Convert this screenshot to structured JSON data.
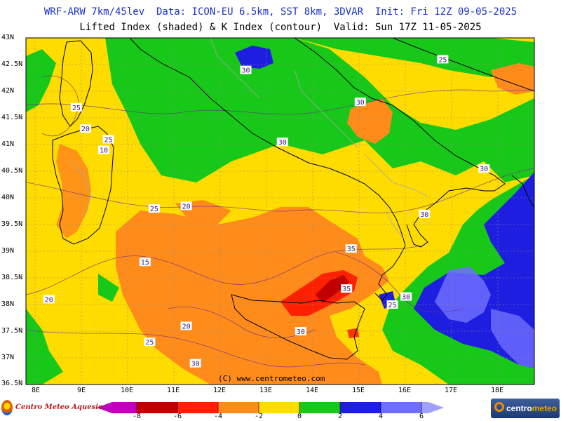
{
  "header": {
    "line1": "WRF-ARW 7km/45lev  Data: ICON-EU 6.5km, SST 8km, 3DVAR  Init: Fri 12Z 09-05-2025",
    "line2": "Lifted Index (shaded) & K Index (contour)  Valid: Sun 17Z 11-05-2025"
  },
  "map": {
    "lat_labels": [
      "43N",
      "42.5N",
      "42N",
      "41.5N",
      "41N",
      "40.5N",
      "40N",
      "39.5N",
      "39N",
      "38.5N",
      "38N",
      "37.5N",
      "37N",
      "36.5N"
    ],
    "lon_labels": [
      "8E",
      "9E",
      "10E",
      "11E",
      "12E",
      "13E",
      "14E",
      "15E",
      "16E",
      "17E",
      "18E"
    ],
    "lat_range": [
      36.5,
      43
    ],
    "lon_range": [
      7.8,
      18.9
    ],
    "credit": "(C) www.centrometeo.com",
    "k_index_labels": [
      {
        "text": "25",
        "lon": 16.9,
        "lat": 42.6
      },
      {
        "text": "30",
        "lon": 12.6,
        "lat": 42.4
      },
      {
        "text": "25",
        "lon": 8.9,
        "lat": 41.7
      },
      {
        "text": "30",
        "lon": 15.1,
        "lat": 41.8
      },
      {
        "text": "20",
        "lon": 9.1,
        "lat": 41.3
      },
      {
        "text": "25",
        "lon": 9.6,
        "lat": 41.1
      },
      {
        "text": "30",
        "lon": 13.4,
        "lat": 41.05
      },
      {
        "text": "10",
        "lon": 9.5,
        "lat": 40.9
      },
      {
        "text": "30",
        "lon": 17.8,
        "lat": 40.55
      },
      {
        "text": "25",
        "lon": 10.6,
        "lat": 39.8
      },
      {
        "text": "20",
        "lon": 11.3,
        "lat": 39.85
      },
      {
        "text": "30",
        "lon": 16.5,
        "lat": 39.7
      },
      {
        "text": "35",
        "lon": 14.9,
        "lat": 39.05
      },
      {
        "text": "15",
        "lon": 10.4,
        "lat": 38.8
      },
      {
        "text": "35",
        "lon": 14.8,
        "lat": 38.3
      },
      {
        "text": "30",
        "lon": 16.1,
        "lat": 38.15
      },
      {
        "text": "25",
        "lon": 15.8,
        "lat": 38.0
      },
      {
        "text": "20",
        "lon": 8.3,
        "lat": 38.1
      },
      {
        "text": "20",
        "lon": 11.3,
        "lat": 37.6
      },
      {
        "text": "30",
        "lon": 13.8,
        "lat": 37.5
      },
      {
        "text": "25",
        "lon": 10.5,
        "lat": 37.3
      },
      {
        "text": "30",
        "lon": 11.5,
        "lat": 36.9
      }
    ]
  },
  "colorbar": {
    "ticks": [
      "-8",
      "-6",
      "-4",
      "-2",
      "0",
      "2",
      "4",
      "6"
    ],
    "bins": [
      "#c000c0",
      "#c00000",
      "#ff2000",
      "#ff8c1a",
      "#ffdc00",
      "#18c818",
      "#1e1ee0",
      "#6e6eff",
      "#a0a0ff"
    ],
    "lifted_index_colors": {
      "lt_-8": "#c000c0",
      "-8_-6": "#c00000",
      "-6_-4": "#ff2000",
      "-4_-2": "#ff8c1a",
      "-2_0": "#ffdc00",
      "0_2": "#18c818",
      "2_4": "#1e1ee0",
      "4_6": "#6e6eff",
      "gt_6": "#a0a0ff"
    }
  },
  "logos": {
    "left": "Centro Meteo Aquesio",
    "right_main": "centro",
    "right_accent": "meteo"
  }
}
